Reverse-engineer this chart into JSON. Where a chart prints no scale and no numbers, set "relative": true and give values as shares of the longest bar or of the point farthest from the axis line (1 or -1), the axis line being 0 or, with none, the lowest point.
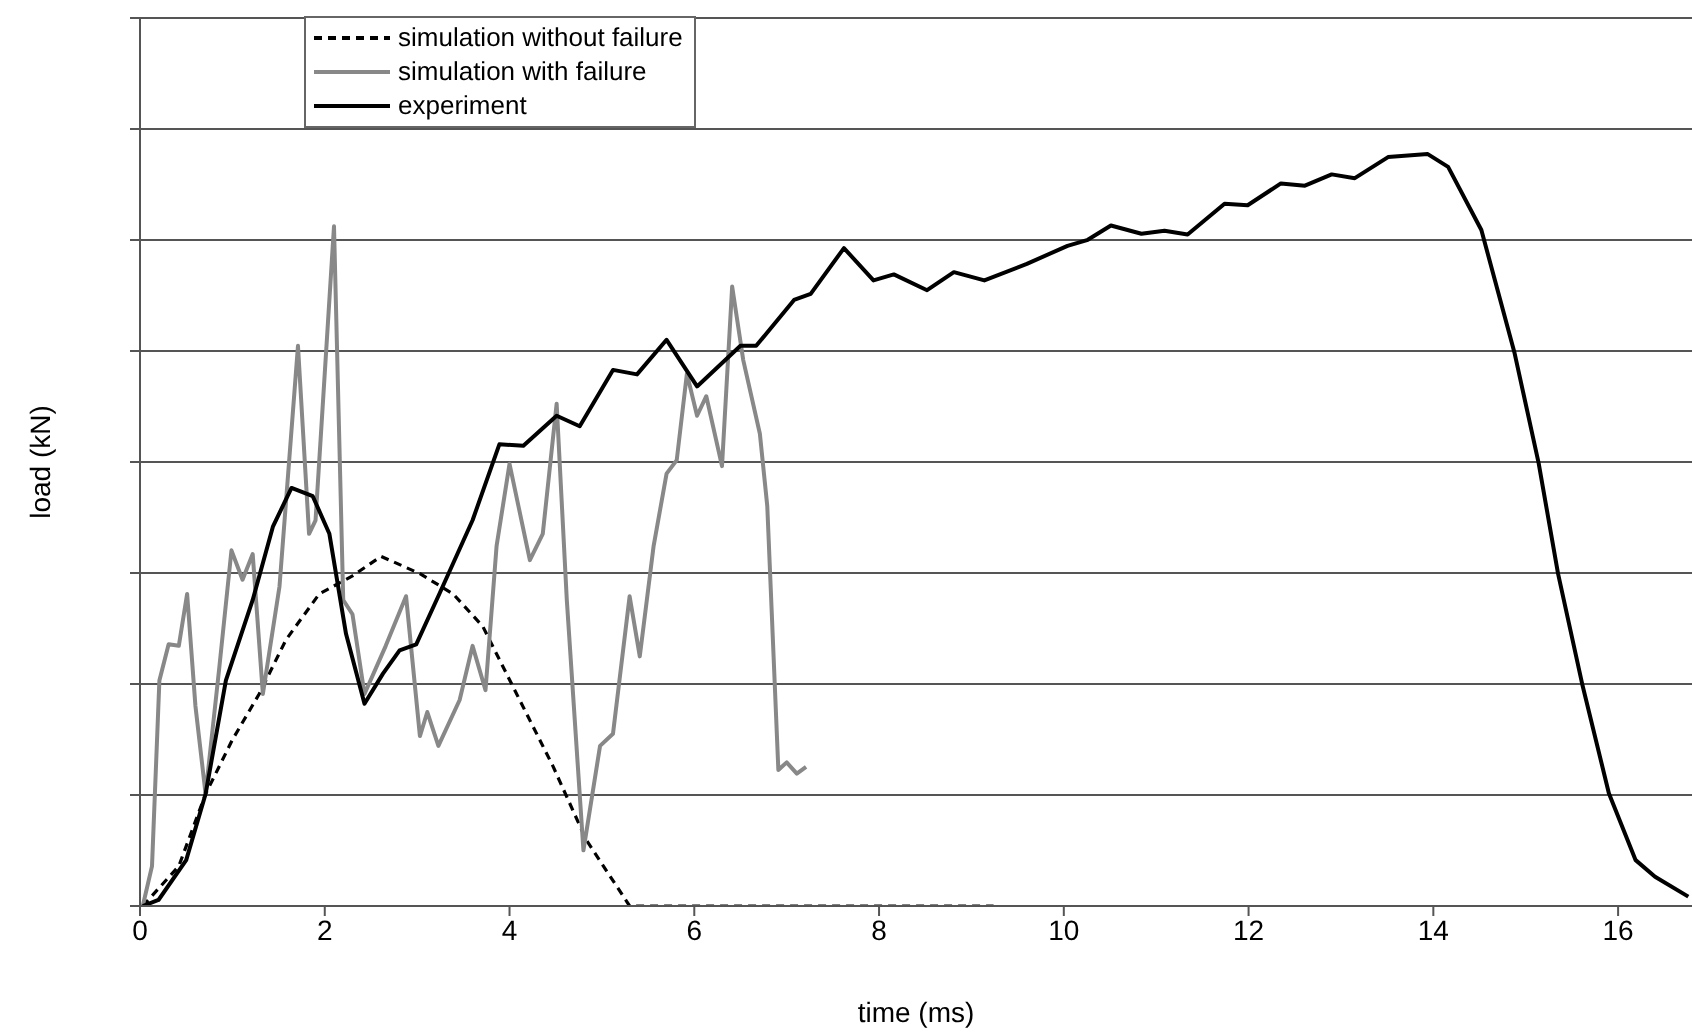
{
  "chart_data": {
    "type": "line",
    "relative": true,
    "xlabel": "time (ms)",
    "ylabel": "load (kN)",
    "xlim": [
      0,
      16.8
    ],
    "xticks": [
      0,
      2,
      4,
      6,
      8,
      10,
      12,
      14,
      16
    ],
    "grid": "y",
    "tick_labels": "x",
    "legend": "top left",
    "marker": "none",
    "series": [
      {
        "name": "simulation without failure",
        "color": "#000000",
        "line_style": "dashed",
        "x": [
          0.03,
          0.42,
          0.71,
          1.0,
          1.29,
          1.58,
          1.94,
          2.3,
          2.61,
          3.03,
          3.39,
          3.71,
          4.11,
          4.47,
          4.83,
          5.3,
          9.24
        ],
        "values": [
          0,
          0.053,
          0.149,
          0.221,
          0.282,
          0.354,
          0.415,
          0.439,
          0.465,
          0.442,
          0.415,
          0.372,
          0.274,
          0.186,
          0.088,
          0,
          0
        ]
      },
      {
        "name": "simulation with failure",
        "color": "#888888",
        "line_style": "solid",
        "x": [
          0.03,
          0.13,
          0.21,
          0.31,
          0.42,
          0.51,
          0.6,
          0.71,
          0.86,
          0.99,
          1.11,
          1.22,
          1.33,
          1.51,
          1.71,
          1.83,
          1.9,
          2.1,
          2.2,
          2.3,
          2.43,
          2.66,
          2.88,
          3.03,
          3.11,
          3.23,
          3.46,
          3.6,
          3.74,
          3.86,
          4.0,
          4.22,
          4.36,
          4.51,
          4.62,
          4.8,
          4.98,
          5.12,
          5.3,
          5.41,
          5.56,
          5.7,
          5.81,
          5.92,
          6.03,
          6.13,
          6.3,
          6.41,
          6.53,
          6.71,
          6.79,
          6.91,
          7.0,
          7.11,
          7.21
        ],
        "values": [
          0,
          0.053,
          0.3,
          0.348,
          0.346,
          0.415,
          0.266,
          0.149,
          0.319,
          0.473,
          0.434,
          0.468,
          0.282,
          0.425,
          0.745,
          0.495,
          0.513,
          0.904,
          0.407,
          0.388,
          0.282,
          0.346,
          0.412,
          0.226,
          0.258,
          0.213,
          0.274,
          0.346,
          0.287,
          0.479,
          0.588,
          0.46,
          0.495,
          0.668,
          0.407,
          0.074,
          0.213,
          0.229,
          0.412,
          0.332,
          0.479,
          0.575,
          0.593,
          0.708,
          0.652,
          0.678,
          0.585,
          0.824,
          0.726,
          0.628,
          0.532,
          0.181,
          0.191,
          0.176,
          0.185
        ]
      },
      {
        "name": "experiment",
        "color": "#000000",
        "line_style": "solid",
        "x": [
          0.03,
          0.2,
          0.5,
          0.71,
          0.93,
          1.22,
          1.44,
          1.64,
          1.87,
          2.05,
          2.23,
          2.43,
          2.63,
          2.81,
          2.99,
          3.24,
          3.6,
          3.89,
          4.15,
          4.51,
          4.76,
          5.12,
          5.38,
          5.7,
          6.03,
          6.5,
          6.67,
          7.08,
          7.26,
          7.62,
          7.94,
          8.16,
          8.52,
          8.81,
          9.14,
          9.6,
          10.04,
          10.26,
          10.51,
          10.84,
          11.09,
          11.34,
          11.74,
          11.99,
          12.35,
          12.61,
          12.9,
          13.15,
          13.51,
          13.94,
          14.16,
          14.52,
          14.88,
          15.14,
          15.35,
          15.61,
          15.9,
          16.19,
          16.4,
          16.76
        ],
        "values": [
          0,
          0.008,
          0.061,
          0.149,
          0.3,
          0.407,
          0.505,
          0.556,
          0.545,
          0.495,
          0.362,
          0.269,
          0.309,
          0.34,
          0.348,
          0.415,
          0.513,
          0.614,
          0.612,
          0.652,
          0.638,
          0.713,
          0.707,
          0.753,
          0.691,
          0.745,
          0.745,
          0.806,
          0.814,
          0.875,
          0.832,
          0.84,
          0.819,
          0.843,
          0.832,
          0.854,
          0.878,
          0.886,
          0.905,
          0.894,
          0.898,
          0.893,
          0.934,
          0.932,
          0.961,
          0.958,
          0.973,
          0.968,
          0.996,
          1.0,
          0.983,
          0.899,
          0.735,
          0.589,
          0.442,
          0.296,
          0.15,
          0.061,
          0.039,
          0.0125
        ]
      }
    ]
  }
}
